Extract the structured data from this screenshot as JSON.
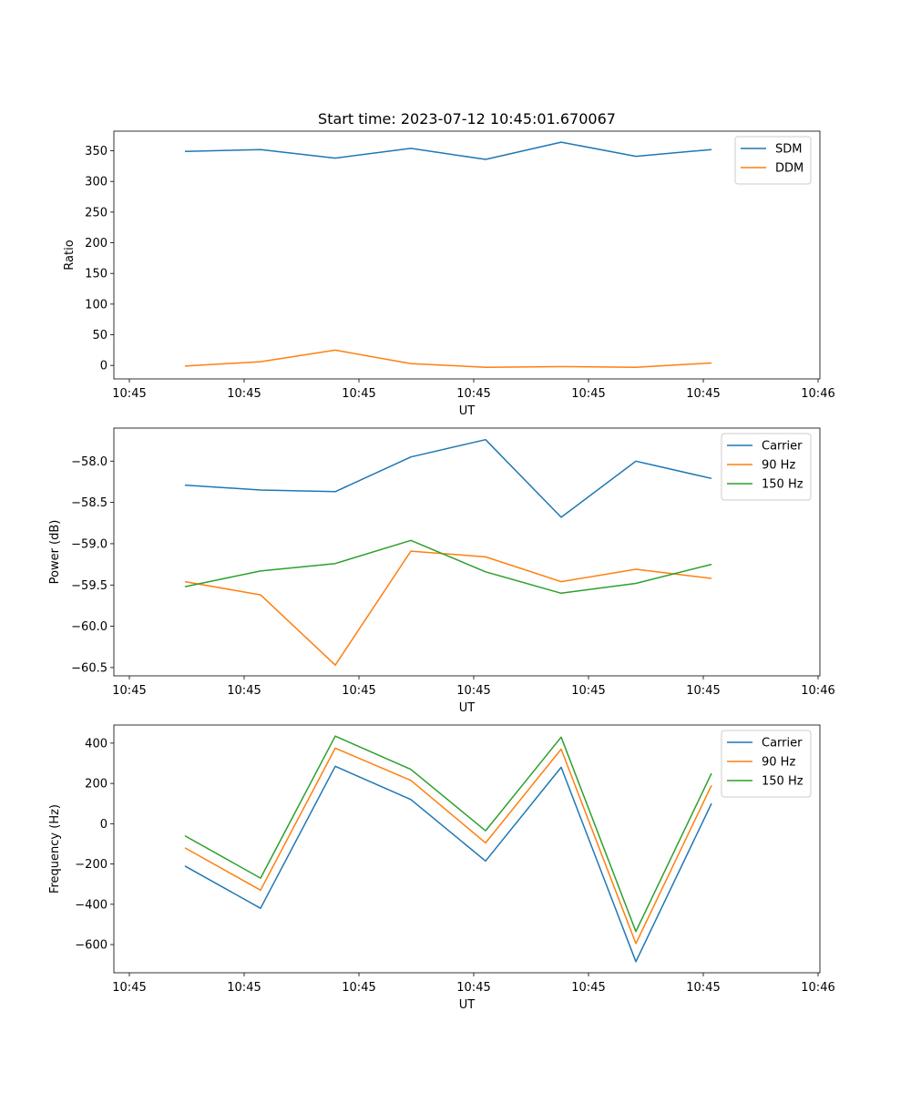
{
  "chart_data": [
    {
      "type": "line",
      "title": "Start time: 2023-07-12 10:45:01.670067",
      "xlabel": "UT",
      "ylabel": "Ratio",
      "xticks": [
        "10:45",
        "10:45",
        "10:45",
        "10:45",
        "10:45",
        "10:45",
        "10:46"
      ],
      "ylim": [
        -22,
        382
      ],
      "yticks": [
        0,
        50,
        100,
        150,
        200,
        250,
        300,
        350
      ],
      "legend": "top-right",
      "series": [
        {
          "name": "SDM",
          "color": "#1f77b4",
          "values": [
            349,
            352,
            338,
            354,
            336,
            364,
            341,
            352
          ]
        },
        {
          "name": "DDM",
          "color": "#ff7f0e",
          "values": [
            -1,
            6,
            25,
            3,
            -3,
            -2,
            -3,
            4
          ]
        }
      ]
    },
    {
      "type": "line",
      "title": "",
      "xlabel": "UT",
      "ylabel": "Power (dB)",
      "xticks": [
        "10:45",
        "10:45",
        "10:45",
        "10:45",
        "10:45",
        "10:45",
        "10:46"
      ],
      "ylim": [
        -60.6,
        -57.6
      ],
      "yticks": [
        -58.0,
        -58.5,
        -59.0,
        -59.5,
        -60.0,
        -60.5
      ],
      "legend": "top-right",
      "series": [
        {
          "name": "Carrier",
          "color": "#1f77b4",
          "values": [
            -58.29,
            -58.35,
            -58.37,
            -57.95,
            -57.74,
            -58.68,
            -58.0,
            -58.21
          ]
        },
        {
          "name": "90 Hz",
          "color": "#ff7f0e",
          "values": [
            -59.46,
            -59.62,
            -60.47,
            -59.09,
            -59.16,
            -59.46,
            -59.31,
            -59.42
          ]
        },
        {
          "name": "150 Hz",
          "color": "#2ca02c",
          "values": [
            -59.52,
            -59.33,
            -59.24,
            -58.96,
            -59.34,
            -59.6,
            -59.48,
            -59.25
          ]
        }
      ]
    },
    {
      "type": "line",
      "title": "",
      "xlabel": "UT",
      "ylabel": "Frequency (Hz)",
      "xticks": [
        "10:45",
        "10:45",
        "10:45",
        "10:45",
        "10:45",
        "10:45",
        "10:46"
      ],
      "ylim": [
        -740,
        490
      ],
      "yticks": [
        400,
        200,
        0,
        -200,
        -400,
        -600
      ],
      "legend": "top-right",
      "series": [
        {
          "name": "Carrier",
          "color": "#1f77b4",
          "values": [
            -210,
            -420,
            285,
            120,
            -185,
            280,
            -685,
            100
          ]
        },
        {
          "name": "90 Hz",
          "color": "#ff7f0e",
          "values": [
            -120,
            -330,
            375,
            215,
            -95,
            370,
            -595,
            190
          ]
        },
        {
          "name": "150 Hz",
          "color": "#2ca02c",
          "values": [
            -60,
            -270,
            435,
            270,
            -35,
            430,
            -535,
            250
          ]
        }
      ]
    }
  ]
}
